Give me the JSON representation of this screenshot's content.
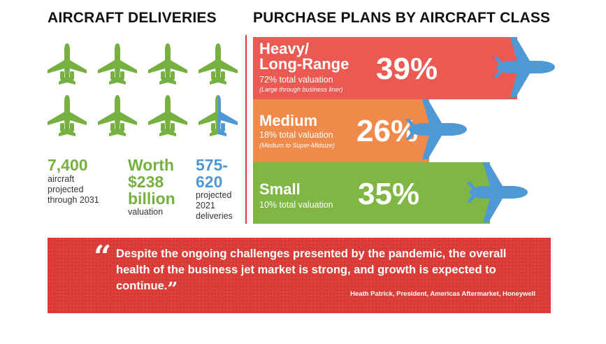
{
  "left_heading": "AIRCRAFT DELIVERIES",
  "right_heading": "PURCHASE PLANS BY AIRCRAFT CLASS",
  "colors": {
    "green": "#76b041",
    "blue": "#4f98d6",
    "red": "#ea5a52",
    "orange": "#f08a4a",
    "quote_bg": "#d93a35"
  },
  "icons": {
    "plane": "jet-plane-icon"
  },
  "deliveries": {
    "icon_count": 8,
    "icon_colors": [
      "green",
      "green",
      "green",
      "green",
      "green",
      "green",
      "green",
      "green-blue-split"
    ],
    "stats": [
      {
        "big": "7,400",
        "small": [
          "aircraft",
          "projected",
          "through 2031"
        ]
      },
      {
        "big": [
          "Worth",
          "$238",
          "billion"
        ],
        "small": [
          "valuation"
        ]
      },
      {
        "big": [
          "575-",
          "620"
        ],
        "small": [
          "projected",
          "2021",
          "deliveries"
        ]
      }
    ]
  },
  "chart_data": {
    "type": "bar",
    "orientation": "horizontal",
    "title": "PURCHASE PLANS BY AIRCRAFT CLASS",
    "categories": [
      "Heavy/ Long-Range",
      "Medium",
      "Small"
    ],
    "values": [
      39,
      26,
      35
    ],
    "value_labels": [
      "39%",
      "26%",
      "35%"
    ],
    "unit": "%",
    "subtitles": [
      "72% total valuation",
      "18% total valuation",
      "10% total valuation"
    ],
    "notes": [
      "(Large through business liner)",
      "(Medium to Super-Midsize)",
      ""
    ],
    "colors": [
      "#ea5a52",
      "#f08a4a",
      "#7fb644"
    ]
  },
  "bars_display": {
    "heavy_title": [
      "Heavy/",
      "Long-Range"
    ],
    "medium_title": "Medium",
    "small_title": "Small"
  },
  "quote": {
    "open_mark": "“",
    "text": "Despite the ongoing challenges presented by the pandemic, the overall health of the business jet market is strong, and growth is expected to continue.",
    "close_mark": "”",
    "attribution": "Heath Patrick, President, Americas Aftermarket, Honeywell"
  }
}
